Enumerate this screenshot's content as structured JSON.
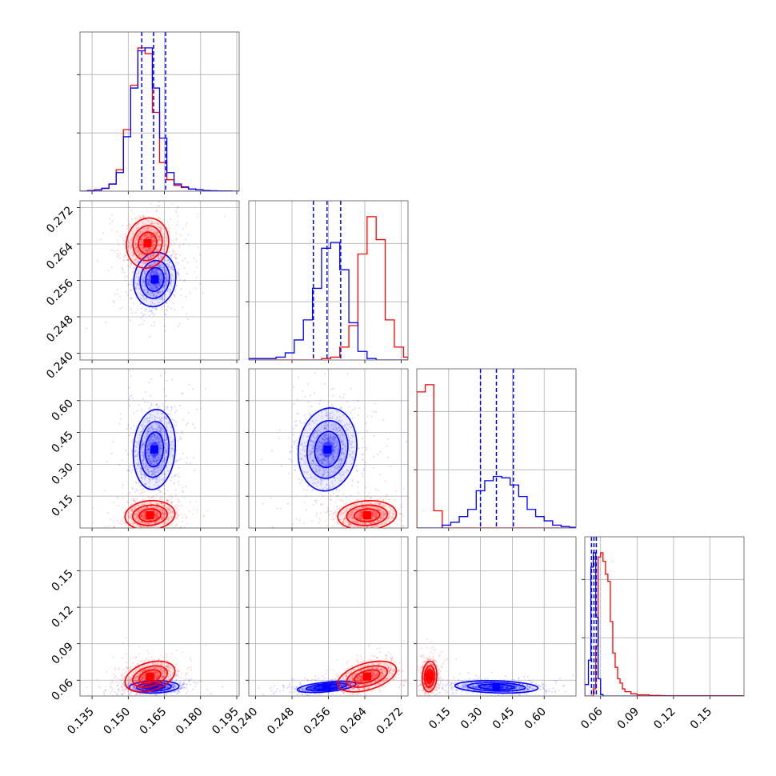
{
  "chart_data": {
    "type": "corner",
    "grid": true,
    "series": [
      {
        "name": "",
        "color": "#ff0000"
      },
      {
        "name": "",
        "color": "#0000ff"
      }
    ],
    "parameters": [
      {
        "range": [
          0.13,
          0.196
        ],
        "ticks": [
          "0.135",
          "0.150",
          "0.165",
          "0.180",
          "0.195"
        ]
      },
      {
        "range": [
          0.2385,
          0.2735
        ],
        "ticks": [
          "0.240",
          "0.248",
          "0.256",
          "0.264",
          "0.272"
        ]
      },
      {
        "range": [
          0.0,
          0.75
        ],
        "ticks": [
          "0.15",
          "0.30",
          "0.45",
          "0.60"
        ]
      },
      {
        "range": [
          0.047,
          0.178
        ],
        "ticks": [
          "0.06",
          "0.09",
          "0.12",
          "0.15"
        ]
      }
    ],
    "quantiles_blue": [
      [
        0.1556,
        0.1605,
        0.1655
      ],
      [
        0.2527,
        0.2557,
        0.2587
      ],
      [
        0.3,
        0.375,
        0.455
      ],
      [
        0.0525,
        0.0545,
        0.0565
      ]
    ],
    "histograms": [
      {
        "param": 0,
        "bins": [
          0.13,
          0.133,
          0.136,
          0.139,
          0.142,
          0.145,
          0.148,
          0.151,
          0.154,
          0.157,
          0.16,
          0.163,
          0.166,
          0.169,
          0.172,
          0.175,
          0.178,
          0.181,
          0.184,
          0.187,
          0.19,
          0.193,
          0.196
        ],
        "red": [
          0,
          0.005,
          0.01,
          0.02,
          0.05,
          0.15,
          0.43,
          0.74,
          1.0,
          0.96,
          0.55,
          0.2,
          0.08,
          0.04,
          0.025,
          0.015,
          0.01,
          0.005,
          0.003,
          0.002,
          0.001,
          0
        ],
        "blue": [
          0,
          0.003,
          0.008,
          0.02,
          0.05,
          0.13,
          0.38,
          0.72,
          0.98,
          1.0,
          0.72,
          0.37,
          0.13,
          0.05,
          0.03,
          0.015,
          0.01,
          0.005,
          0.003,
          0.002,
          0.001,
          0
        ]
      },
      {
        "param": 1,
        "bins": [
          0.2385,
          0.2405,
          0.2425,
          0.2445,
          0.2465,
          0.2485,
          0.2505,
          0.2525,
          0.2545,
          0.2565,
          0.2585,
          0.2605,
          0.2625,
          0.2645,
          0.2665,
          0.2685,
          0.2705,
          0.2725,
          0.2735
        ],
        "red": [
          0,
          0,
          0,
          0,
          0,
          0,
          0,
          0,
          0.01,
          0.02,
          0.09,
          0.24,
          0.74,
          1.0,
          0.84,
          0.28,
          0.09,
          0.02
        ],
        "blue": [
          0.01,
          0.01,
          0.01,
          0.02,
          0.05,
          0.14,
          0.28,
          0.5,
          0.78,
          0.82,
          0.63,
          0.26,
          0.06,
          0.01,
          0,
          0,
          0,
          0
        ]
      },
      {
        "param": 2,
        "bins": [
          0.0,
          0.04,
          0.08,
          0.12,
          0.16,
          0.2,
          0.24,
          0.28,
          0.32,
          0.36,
          0.4,
          0.44,
          0.48,
          0.52,
          0.56,
          0.6,
          0.64,
          0.68,
          0.72,
          0.75
        ],
        "red": [
          0.95,
          1.0,
          0.12,
          0,
          0,
          0,
          0,
          0,
          0,
          0,
          0,
          0,
          0,
          0,
          0,
          0,
          0,
          0,
          0
        ],
        "blue": [
          0,
          0,
          0,
          0.02,
          0.04,
          0.08,
          0.13,
          0.26,
          0.33,
          0.36,
          0.35,
          0.3,
          0.22,
          0.13,
          0.08,
          0.05,
          0.02,
          0.01,
          0.005
        ]
      },
      {
        "param": 3,
        "bins": [
          0.047,
          0.05,
          0.052,
          0.054,
          0.056,
          0.058,
          0.06,
          0.062,
          0.064,
          0.066,
          0.068,
          0.07,
          0.072,
          0.074,
          0.076,
          0.078,
          0.08,
          0.085,
          0.09,
          0.1,
          0.11,
          0.178
        ],
        "red": [
          0,
          0,
          0,
          0.05,
          0.35,
          0.97,
          1.0,
          0.94,
          0.85,
          0.8,
          0.52,
          0.3,
          0.2,
          0.12,
          0.09,
          0.05,
          0.03,
          0.015,
          0.008,
          0.004,
          0.002
        ],
        "blue": [
          0.08,
          0.25,
          0.9,
          1.0,
          0.55,
          0.12,
          0.01,
          0,
          0,
          0,
          0,
          0,
          0,
          0,
          0,
          0,
          0,
          0,
          0,
          0,
          0
        ]
      }
    ],
    "pairs": [
      {
        "x": 0,
        "y": 1,
        "red": {
          "center": [
            0.158,
            0.2642
          ],
          "sd": [
            0.0038,
            0.0024
          ],
          "rho": 0.08
        },
        "blue": {
          "center": [
            0.161,
            0.2562
          ],
          "sd": [
            0.0038,
            0.0026
          ],
          "rho": 0.1
        }
      },
      {
        "x": 0,
        "y": 2,
        "red": {
          "center": [
            0.159,
            0.06
          ],
          "sd": [
            0.0045,
            0.03
          ],
          "rho": 0.1
        },
        "blue": {
          "center": [
            0.1608,
            0.37
          ],
          "sd": [
            0.0038,
            0.082
          ],
          "rho": 0.1
        }
      },
      {
        "x": 1,
        "y": 2,
        "red": {
          "center": [
            0.2645,
            0.06
          ],
          "sd": [
            0.0028,
            0.03
          ],
          "rho": 0.1
        },
        "blue": {
          "center": [
            0.2558,
            0.37
          ],
          "sd": [
            0.0028,
            0.085
          ],
          "rho": 0.1
        }
      },
      {
        "x": 0,
        "y": 3,
        "red": {
          "center": [
            0.159,
            0.063
          ],
          "sd": [
            0.0045,
            0.0055
          ],
          "rho": 0.35
        },
        "blue": {
          "center": [
            0.1607,
            0.0545
          ],
          "sd": [
            0.0045,
            0.0022
          ],
          "rho": 0.1
        }
      },
      {
        "x": 1,
        "y": 3,
        "red": {
          "center": [
            0.2645,
            0.063
          ],
          "sd": [
            0.0028,
            0.0055
          ],
          "rho": 0.45
        },
        "blue": {
          "center": [
            0.2556,
            0.0545
          ],
          "sd": [
            0.0028,
            0.002
          ],
          "rho": 0.5
        }
      },
      {
        "x": 2,
        "y": 3,
        "red": {
          "center": [
            0.06,
            0.063
          ],
          "sd": [
            0.015,
            0.0055
          ],
          "rho": 0.1
        },
        "blue": {
          "center": [
            0.375,
            0.0545
          ],
          "sd": [
            0.085,
            0.0022
          ],
          "rho": -0.2
        }
      }
    ]
  }
}
